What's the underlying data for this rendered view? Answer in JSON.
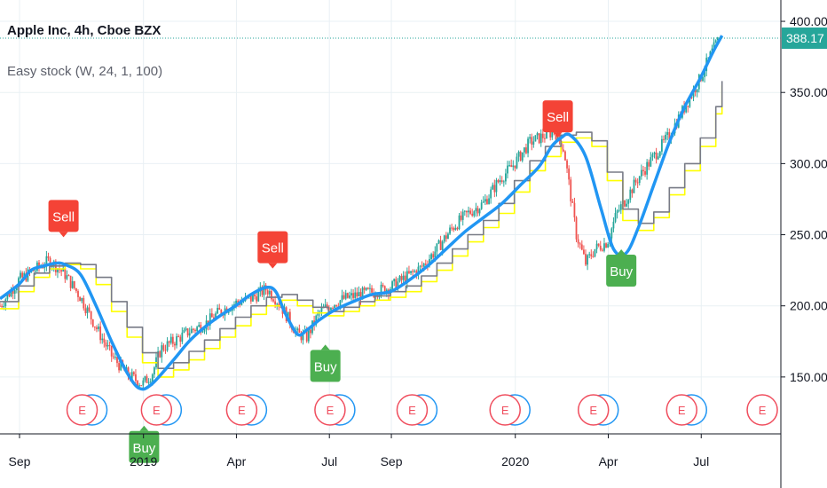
{
  "header": {
    "symbol_line": "Apple Inc, 4h, Cboe BZX",
    "indicator_line": "Easy stock (W, 24, 1, 100)"
  },
  "colors": {
    "background": "#ffffff",
    "grid": "#e9f0f4",
    "axis": "#131722",
    "axis_text": "#131722",
    "candle_up": "#26a69a",
    "candle_down": "#ef5350",
    "blue_line": "#2196f3",
    "yellow_line": "#ffff00",
    "gray_line": "#787b86",
    "price_line": "#26a69a",
    "sell_label": "#f44336",
    "buy_label": "#4caf50",
    "earnings": "#f04e5e",
    "dividend": "#2196f3"
  },
  "chart_data": {
    "type": "line",
    "title": "Apple Inc, 4h, Cboe BZX",
    "subtitle": "Easy stock (W, 24, 1, 100)",
    "xlabel": "",
    "ylabel": "",
    "ylim": [
      110,
      415
    ],
    "x_ticks": [
      {
        "label": "Sep",
        "t": 0.03
      },
      {
        "label": "2019",
        "t": 4.03
      },
      {
        "label": "Apr",
        "t": 7.03
      },
      {
        "label": "Jul",
        "t": 10.03
      },
      {
        "label": "Sep",
        "t": 12.03
      },
      {
        "label": "2020",
        "t": 16.03
      },
      {
        "label": "Apr",
        "t": 19.03
      },
      {
        "label": "Jul",
        "t": 22.03
      }
    ],
    "y_ticks": [
      150,
      200,
      250,
      300,
      350,
      400
    ],
    "last_price": {
      "value": 388.17,
      "label": "388.17"
    },
    "price_series": {
      "name": "AAPL",
      "t": [
        -0.6,
        0.0,
        0.5,
        1.0,
        1.5,
        2.0,
        2.5,
        3.0,
        3.5,
        4.0,
        4.3,
        4.6,
        5.0,
        5.5,
        6.0,
        6.5,
        7.0,
        7.5,
        8.0,
        8.3,
        8.6,
        9.0,
        9.3,
        9.7,
        10.0,
        10.5,
        11.0,
        11.5,
        12.0,
        12.5,
        13.0,
        13.5,
        14.0,
        14.5,
        15.0,
        15.5,
        16.0,
        16.5,
        17.0,
        17.3,
        17.6,
        18.0,
        18.3,
        18.6,
        19.0,
        19.3,
        19.6,
        20.0,
        20.5,
        21.0,
        21.5,
        22.0,
        22.3,
        22.6
      ],
      "close": [
        200,
        218,
        225,
        232,
        222,
        206,
        185,
        165,
        152,
        145,
        152,
        170,
        175,
        182,
        187,
        196,
        202,
        205,
        212,
        205,
        195,
        180,
        178,
        195,
        200,
        205,
        208,
        210,
        213,
        220,
        227,
        240,
        255,
        265,
        272,
        288,
        300,
        315,
        320,
        323,
        310,
        250,
        230,
        240,
        245,
        265,
        275,
        290,
        305,
        320,
        340,
        360,
        375,
        388
      ]
    },
    "series": [
      {
        "name": "",
        "kind": "smooth",
        "t": [
          -0.6,
          0.0,
          0.4,
          0.8,
          1.2,
          1.5,
          2.0,
          2.5,
          3.0,
          3.5,
          3.9,
          4.3,
          5.0,
          5.5,
          6.0,
          6.5,
          7.0,
          7.5,
          8.0,
          8.3,
          8.6,
          9.0,
          9.3,
          9.7,
          10.2,
          10.8,
          11.4,
          12.0,
          12.6,
          13.2,
          13.8,
          14.4,
          15.0,
          15.6,
          16.2,
          16.8,
          17.2,
          17.5,
          17.8,
          18.3,
          18.8,
          19.2,
          19.6,
          20.0,
          20.5,
          21.0,
          21.5,
          22.0,
          22.4,
          22.7
        ],
        "values": [
          205,
          215,
          225,
          228,
          230,
          229,
          222,
          200,
          175,
          153,
          142,
          145,
          162,
          175,
          185,
          193,
          200,
          208,
          213,
          210,
          195,
          180,
          183,
          190,
          197,
          203,
          208,
          210,
          218,
          228,
          240,
          252,
          262,
          272,
          285,
          298,
          312,
          318,
          320,
          305,
          268,
          240,
          237,
          255,
          285,
          315,
          340,
          360,
          378,
          390
        ]
      },
      {
        "name": "",
        "kind": "step",
        "t": [
          -0.6,
          0.0,
          0.5,
          1.0,
          1.5,
          2.0,
          2.5,
          3.0,
          3.5,
          4.0,
          4.5,
          5.0,
          5.5,
          6.0,
          6.5,
          7.0,
          7.5,
          8.0,
          8.5,
          9.0,
          9.5,
          10.0,
          10.5,
          11.0,
          11.5,
          12.0,
          12.5,
          13.0,
          13.5,
          14.0,
          14.5,
          15.0,
          15.5,
          16.0,
          16.5,
          17.0,
          17.5,
          18.0,
          18.5,
          19.0,
          19.5,
          20.0,
          20.5,
          21.0,
          21.5,
          22.0,
          22.5,
          22.7
        ],
        "values": [
          198,
          210,
          220,
          226,
          229,
          226,
          215,
          196,
          178,
          160,
          150,
          155,
          162,
          170,
          178,
          186,
          194,
          200,
          204,
          200,
          195,
          193,
          196,
          200,
          204,
          206,
          210,
          217,
          225,
          235,
          245,
          255,
          265,
          280,
          295,
          305,
          315,
          318,
          312,
          288,
          260,
          253,
          262,
          278,
          295,
          312,
          335,
          355
        ]
      },
      {
        "name": "",
        "kind": "step",
        "t": [
          -0.6,
          0.0,
          0.5,
          1.0,
          1.5,
          2.0,
          2.5,
          3.0,
          3.5,
          4.0,
          4.5,
          5.0,
          5.5,
          6.0,
          6.5,
          7.0,
          7.5,
          8.0,
          8.5,
          9.0,
          9.5,
          10.0,
          10.5,
          11.0,
          11.5,
          12.0,
          12.5,
          13.0,
          13.5,
          14.0,
          14.5,
          15.0,
          15.5,
          16.0,
          16.5,
          17.0,
          17.5,
          18.0,
          18.5,
          19.0,
          19.5,
          20.0,
          20.5,
          21.0,
          21.5,
          22.0,
          22.5,
          22.7
        ],
        "values": [
          203,
          214,
          223,
          228,
          230,
          229,
          220,
          203,
          185,
          167,
          156,
          160,
          168,
          176,
          184,
          192,
          200,
          206,
          208,
          204,
          199,
          196,
          199,
          203,
          207,
          210,
          214,
          221,
          230,
          240,
          250,
          260,
          272,
          288,
          302,
          312,
          320,
          322,
          316,
          294,
          268,
          258,
          266,
          283,
          300,
          318,
          340,
          358
        ]
      }
    ],
    "signals": [
      {
        "type": "Sell",
        "t": 1.45,
        "value": 252
      },
      {
        "type": "Sell",
        "t": 8.2,
        "value": 230
      },
      {
        "type": "Sell",
        "t": 17.4,
        "value": 322
      },
      {
        "type": "Buy",
        "t": 9.9,
        "value": 169
      },
      {
        "type": "Buy",
        "t": 19.45,
        "value": 236
      },
      {
        "type": "Buy",
        "t": 4.05,
        "value": 112
      }
    ],
    "events": [
      {
        "label": "E",
        "t": 2.05,
        "dividend": true
      },
      {
        "label": "E",
        "t": 4.45,
        "dividend": true
      },
      {
        "label": "E",
        "t": 7.2,
        "dividend": true
      },
      {
        "label": "E",
        "t": 10.05,
        "dividend": true
      },
      {
        "label": "E",
        "t": 12.7,
        "dividend": true
      },
      {
        "label": "E",
        "t": 15.7,
        "dividend": true
      },
      {
        "label": "E",
        "t": 18.55,
        "dividend": true
      },
      {
        "label": "E",
        "t": 21.4,
        "dividend": true
      },
      {
        "label": "E",
        "t": 24.0,
        "dividend": false
      }
    ]
  }
}
